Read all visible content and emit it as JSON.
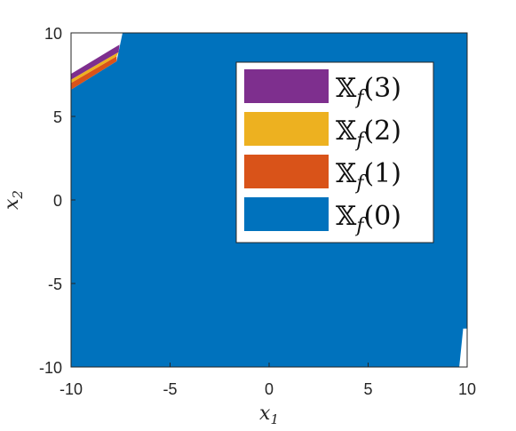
{
  "chart_data": {
    "type": "area",
    "title": "",
    "xlabel": "x",
    "xlabel_sub": "1",
    "ylabel": "x",
    "ylabel_sub": "2",
    "xlim": [
      -10,
      10
    ],
    "ylim": [
      -10,
      10
    ],
    "xticks": [
      -10,
      -5,
      0,
      5,
      10
    ],
    "yticks": [
      -10,
      -5,
      0,
      5,
      10
    ],
    "xtick_labels": [
      "-10",
      "-5",
      "0",
      "5",
      "10"
    ],
    "ytick_labels": [
      "-10",
      "-5",
      "0",
      "5",
      "10"
    ],
    "grid": false,
    "legend_position": "top-right",
    "series": [
      {
        "name": "𝕏f(0)",
        "color": "#0072BD",
        "polygon": [
          [
            -10,
            -10
          ],
          [
            9.6,
            -10
          ],
          [
            9.8,
            -7.7
          ],
          [
            10,
            -7.7
          ],
          [
            10,
            10
          ],
          [
            -7.4,
            10
          ],
          [
            -7.7,
            8.3
          ],
          [
            -10,
            6.6
          ]
        ]
      },
      {
        "name": "𝕏f(1)",
        "color": "#D95319",
        "polygon": [
          [
            -10,
            6.6
          ],
          [
            -7.7,
            8.3
          ],
          [
            -7.7,
            8.6
          ],
          [
            -10,
            7.0
          ]
        ]
      },
      {
        "name": "𝕏f(2)",
        "color": "#EDB120",
        "polygon": [
          [
            -10,
            7.0
          ],
          [
            -7.7,
            8.6
          ],
          [
            -7.6,
            8.85
          ],
          [
            -10,
            7.2
          ]
        ]
      },
      {
        "name": "𝕏f(3)",
        "color": "#7E2F8E",
        "polygon": [
          [
            -10,
            7.2
          ],
          [
            -7.6,
            8.85
          ],
          [
            -7.55,
            9.3
          ],
          [
            -10,
            7.55
          ]
        ]
      }
    ],
    "legend": [
      {
        "name": "𝕏f(3)",
        "base": "𝕏",
        "sub": "f",
        "arg": "(3)",
        "color": "#7E2F8E"
      },
      {
        "name": "𝕏f(2)",
        "base": "𝕏",
        "sub": "f",
        "arg": "(2)",
        "color": "#EDB120"
      },
      {
        "name": "𝕏f(1)",
        "base": "𝕏",
        "sub": "f",
        "arg": "(1)",
        "color": "#D95319"
      },
      {
        "name": "𝕏f(0)",
        "base": "𝕏",
        "sub": "f",
        "arg": "(0)",
        "color": "#0072BD"
      }
    ]
  }
}
